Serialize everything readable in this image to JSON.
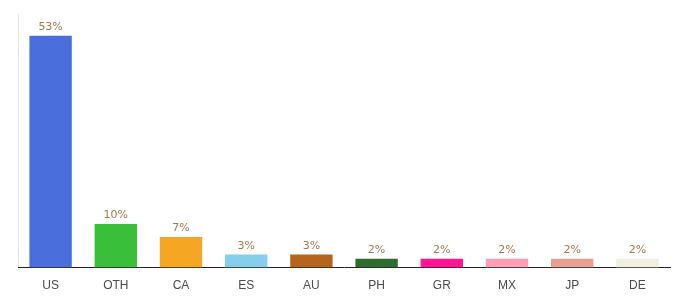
{
  "chart_data": {
    "type": "bar",
    "categories": [
      "US",
      "OTH",
      "CA",
      "ES",
      "AU",
      "PH",
      "GR",
      "MX",
      "JP",
      "DE"
    ],
    "values": [
      53,
      10,
      7,
      3,
      3,
      2,
      2,
      2,
      2,
      2
    ],
    "value_labels": [
      "53%",
      "10%",
      "7%",
      "3%",
      "3%",
      "2%",
      "2%",
      "2%",
      "2%",
      "2%"
    ],
    "colors": [
      "#4a6fdc",
      "#3abf3a",
      "#f5a623",
      "#87ceeb",
      "#b5651d",
      "#2d6e2d",
      "#ff1493",
      "#ff9eb5",
      "#e8a090",
      "#f0eedd"
    ],
    "ylim": [
      0,
      58
    ],
    "grid": false,
    "data_labels": true,
    "tick_labels": "x"
  }
}
